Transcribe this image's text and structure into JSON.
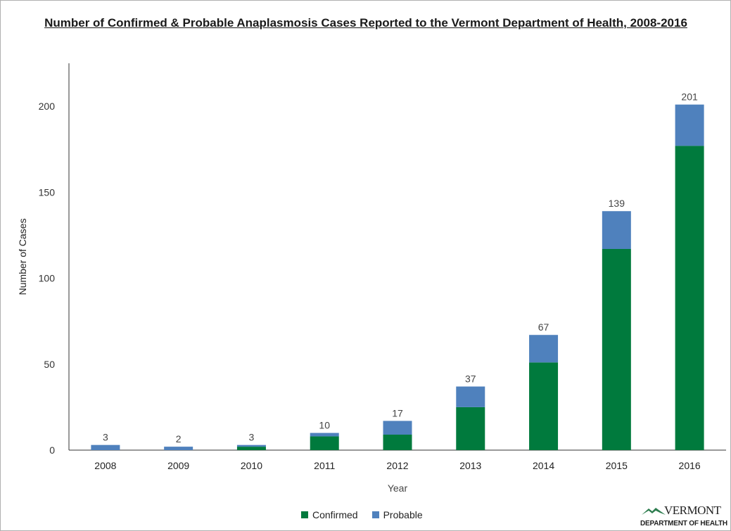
{
  "chart_data": {
    "type": "bar",
    "stacked": true,
    "title": "Number of Confirmed & Probable Anaplasmosis Cases Reported to the Vermont Department of Health, 2008-2016",
    "xlabel": "Year",
    "ylabel": "Number of Cases",
    "ylim": [
      0,
      225
    ],
    "yticks": [
      0,
      50,
      100,
      150,
      200
    ],
    "categories": [
      "2008",
      "2009",
      "2010",
      "2011",
      "2012",
      "2013",
      "2014",
      "2015",
      "2016"
    ],
    "series": [
      {
        "name": "Confirmed",
        "color": "#007a3d",
        "values": [
          0,
          0,
          2,
          8,
          9,
          25,
          51,
          117,
          177
        ]
      },
      {
        "name": "Probable",
        "color": "#4f81bd",
        "values": [
          3,
          2,
          1,
          2,
          8,
          12,
          16,
          22,
          24
        ]
      }
    ],
    "totals": [
      3,
      2,
      3,
      10,
      17,
      37,
      67,
      139,
      201
    ],
    "legend": "bottom",
    "grid": false
  },
  "logo": {
    "line1": "VERMONT",
    "line2": "DEPARTMENT OF HEALTH"
  }
}
